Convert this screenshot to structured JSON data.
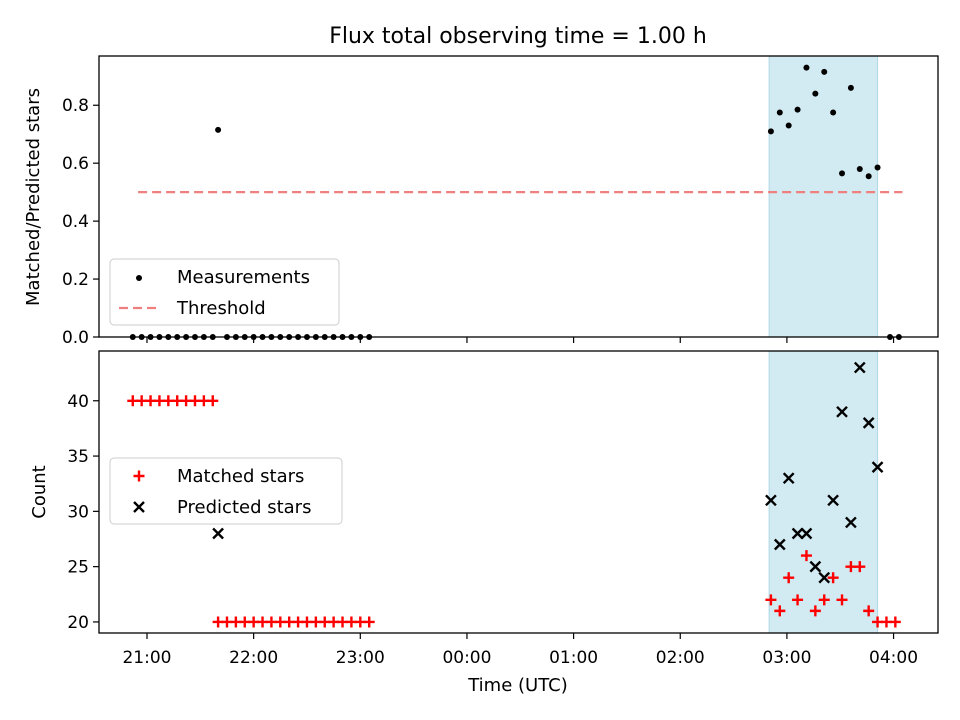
{
  "title": "Flux total observing time = 1.00 h",
  "colors": {
    "measurement": "#000000",
    "threshold": "#f08080",
    "matched": "#ff0000",
    "predicted": "#000000",
    "highlight": "#add8e6"
  },
  "chart_data": [
    {
      "type": "scatter",
      "panel": "top",
      "ylabel": "Matched/Predicted stars",
      "ylim": [
        0,
        0.97
      ],
      "yticks": [
        0.0,
        0.2,
        0.4,
        0.6,
        0.8
      ],
      "ytick_labels": [
        "0.0",
        "0.2",
        "0.4",
        "0.6",
        "0.8"
      ],
      "xlim": [
        "20:33",
        "04:25"
      ],
      "highlight_span": [
        "02:50",
        "03:51"
      ],
      "legend": {
        "placement": "lower-left",
        "entries": [
          "Measurements",
          "Threshold"
        ]
      },
      "threshold": {
        "name": "Threshold",
        "value": 0.5,
        "x": [
          "20:55",
          "04:05"
        ]
      },
      "series": [
        {
          "name": "Measurements",
          "points": [
            {
              "x": "20:52",
              "y": 0
            },
            {
              "x": "20:57",
              "y": 0
            },
            {
              "x": "21:02",
              "y": 0
            },
            {
              "x": "21:07",
              "y": 0
            },
            {
              "x": "21:12",
              "y": 0
            },
            {
              "x": "21:17",
              "y": 0
            },
            {
              "x": "21:22",
              "y": 0
            },
            {
              "x": "21:27",
              "y": 0
            },
            {
              "x": "21:32",
              "y": 0
            },
            {
              "x": "21:37",
              "y": 0
            },
            {
              "x": "21:40",
              "y": 0.715
            },
            {
              "x": "21:45",
              "y": 0
            },
            {
              "x": "21:50",
              "y": 0
            },
            {
              "x": "21:55",
              "y": 0
            },
            {
              "x": "22:00",
              "y": 0
            },
            {
              "x": "22:05",
              "y": 0
            },
            {
              "x": "22:10",
              "y": 0
            },
            {
              "x": "22:15",
              "y": 0
            },
            {
              "x": "22:20",
              "y": 0
            },
            {
              "x": "22:25",
              "y": 0
            },
            {
              "x": "22:30",
              "y": 0
            },
            {
              "x": "22:35",
              "y": 0
            },
            {
              "x": "22:40",
              "y": 0
            },
            {
              "x": "22:45",
              "y": 0
            },
            {
              "x": "22:50",
              "y": 0
            },
            {
              "x": "22:55",
              "y": 0
            },
            {
              "x": "23:00",
              "y": 0
            },
            {
              "x": "23:05",
              "y": 0
            },
            {
              "x": "02:51",
              "y": 0.71
            },
            {
              "x": "02:56",
              "y": 0.775
            },
            {
              "x": "03:01",
              "y": 0.73
            },
            {
              "x": "03:06",
              "y": 0.785
            },
            {
              "x": "03:11",
              "y": 0.93
            },
            {
              "x": "03:16",
              "y": 0.84
            },
            {
              "x": "03:21",
              "y": 0.915
            },
            {
              "x": "03:26",
              "y": 0.775
            },
            {
              "x": "03:31",
              "y": 0.565
            },
            {
              "x": "03:36",
              "y": 0.86
            },
            {
              "x": "03:41",
              "y": 0.58
            },
            {
              "x": "03:46",
              "y": 0.555
            },
            {
              "x": "03:51",
              "y": 0.585
            },
            {
              "x": "03:58",
              "y": 0
            },
            {
              "x": "04:03",
              "y": 0
            }
          ]
        }
      ]
    },
    {
      "type": "scatter",
      "panel": "bottom",
      "ylabel": "Count",
      "xlabel": "Time (UTC)",
      "ylim": [
        19,
        44.5
      ],
      "yticks": [
        20,
        25,
        30,
        35,
        40
      ],
      "ytick_labels": [
        "20",
        "25",
        "30",
        "35",
        "40"
      ],
      "xlim": [
        "20:33",
        "04:25"
      ],
      "xticks": [
        "21:00",
        "22:00",
        "23:00",
        "00:00",
        "01:00",
        "02:00",
        "03:00",
        "04:00"
      ],
      "xtick_labels": [
        "21:00",
        "22:00",
        "23:00",
        "00:00",
        "01:00",
        "02:00",
        "03:00",
        "04:00"
      ],
      "highlight_span": [
        "02:50",
        "03:51"
      ],
      "legend": {
        "placement": "center-left",
        "entries": [
          "Matched stars",
          "Predicted stars"
        ]
      },
      "series": [
        {
          "name": "Matched stars",
          "marker": "plus",
          "points": [
            {
              "x": "20:52",
              "y": 40
            },
            {
              "x": "20:57",
              "y": 40
            },
            {
              "x": "21:02",
              "y": 40
            },
            {
              "x": "21:07",
              "y": 40
            },
            {
              "x": "21:12",
              "y": 40
            },
            {
              "x": "21:17",
              "y": 40
            },
            {
              "x": "21:22",
              "y": 40
            },
            {
              "x": "21:27",
              "y": 40
            },
            {
              "x": "21:32",
              "y": 40
            },
            {
              "x": "21:37",
              "y": 40
            },
            {
              "x": "21:40",
              "y": 20
            },
            {
              "x": "21:45",
              "y": 20
            },
            {
              "x": "21:50",
              "y": 20
            },
            {
              "x": "21:55",
              "y": 20
            },
            {
              "x": "22:00",
              "y": 20
            },
            {
              "x": "22:05",
              "y": 20
            },
            {
              "x": "22:10",
              "y": 20
            },
            {
              "x": "22:15",
              "y": 20
            },
            {
              "x": "22:20",
              "y": 20
            },
            {
              "x": "22:25",
              "y": 20
            },
            {
              "x": "22:30",
              "y": 20
            },
            {
              "x": "22:35",
              "y": 20
            },
            {
              "x": "22:40",
              "y": 20
            },
            {
              "x": "22:45",
              "y": 20
            },
            {
              "x": "22:50",
              "y": 20
            },
            {
              "x": "22:55",
              "y": 20
            },
            {
              "x": "23:00",
              "y": 20
            },
            {
              "x": "23:05",
              "y": 20
            },
            {
              "x": "02:51",
              "y": 22
            },
            {
              "x": "02:56",
              "y": 21
            },
            {
              "x": "03:01",
              "y": 24
            },
            {
              "x": "03:06",
              "y": 22
            },
            {
              "x": "03:11",
              "y": 26
            },
            {
              "x": "03:16",
              "y": 21
            },
            {
              "x": "03:21",
              "y": 22
            },
            {
              "x": "03:26",
              "y": 24
            },
            {
              "x": "03:31",
              "y": 22
            },
            {
              "x": "03:36",
              "y": 25
            },
            {
              "x": "03:41",
              "y": 25
            },
            {
              "x": "03:46",
              "y": 21
            },
            {
              "x": "03:51",
              "y": 20
            },
            {
              "x": "03:56",
              "y": 20
            },
            {
              "x": "04:01",
              "y": 20
            }
          ]
        },
        {
          "name": "Predicted stars",
          "marker": "cross",
          "points": [
            {
              "x": "21:40",
              "y": 28
            },
            {
              "x": "02:51",
              "y": 31
            },
            {
              "x": "02:56",
              "y": 27
            },
            {
              "x": "03:01",
              "y": 33
            },
            {
              "x": "03:06",
              "y": 28
            },
            {
              "x": "03:11",
              "y": 28
            },
            {
              "x": "03:16",
              "y": 25
            },
            {
              "x": "03:21",
              "y": 24
            },
            {
              "x": "03:26",
              "y": 31
            },
            {
              "x": "03:31",
              "y": 39
            },
            {
              "x": "03:36",
              "y": 29
            },
            {
              "x": "03:41",
              "y": 43
            },
            {
              "x": "03:46",
              "y": 38
            },
            {
              "x": "03:51",
              "y": 34
            }
          ]
        }
      ]
    }
  ]
}
